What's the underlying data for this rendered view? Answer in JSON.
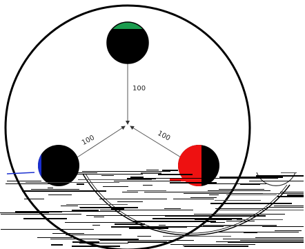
{
  "diagram": {
    "edges": [
      {
        "id": "top",
        "label": "100"
      },
      {
        "id": "left",
        "label": "100"
      },
      {
        "id": "right",
        "label": "100"
      }
    ],
    "nodes": [
      {
        "id": "top-node",
        "accent": "#1a9c4e"
      },
      {
        "id": "left-node",
        "accent": "#1a2fd0"
      },
      {
        "id": "right-node",
        "accent": "#ee1111"
      }
    ],
    "colors": {
      "node_fill": "#000000",
      "line": "#000000",
      "edge": "#555555",
      "background": "#ffffff"
    }
  }
}
